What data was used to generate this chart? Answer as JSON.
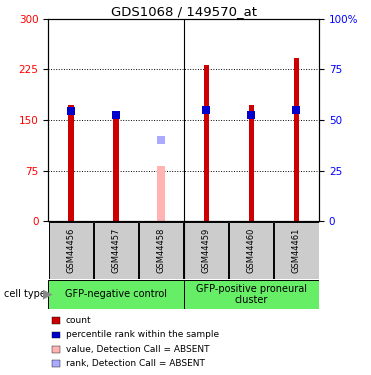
{
  "title": "GDS1068 / 149570_at",
  "samples": [
    "GSM44456",
    "GSM44457",
    "GSM44458",
    "GSM44459",
    "GSM44460",
    "GSM44461"
  ],
  "count_values": [
    172,
    160,
    null,
    232,
    172,
    242
  ],
  "percentile_values": [
    163,
    158,
    null,
    165,
    157,
    165
  ],
  "absent_value": 82,
  "absent_rank": 120,
  "absent_sample_idx": 2,
  "ylim_left": [
    0,
    300
  ],
  "ylim_right": [
    0,
    100
  ],
  "yticks_left": [
    0,
    75,
    150,
    225,
    300
  ],
  "yticks_right": [
    0,
    25,
    50,
    75,
    100
  ],
  "count_color": "#cc0000",
  "percentile_color": "#0000cc",
  "absent_value_color": "#ffb3b3",
  "absent_rank_color": "#aaaaff",
  "group1_label": "GFP-negative control",
  "group2_label": "GFP-positive proneural\ncluster",
  "group_bg_color": "#66ee66",
  "sample_bg_color": "#cccccc",
  "cell_type_label": "cell type",
  "legend_items": [
    {
      "label": "count",
      "color": "#cc0000"
    },
    {
      "label": "percentile rank within the sample",
      "color": "#0000cc"
    },
    {
      "label": "value, Detection Call = ABSENT",
      "color": "#ffb3b3"
    },
    {
      "label": "rank, Detection Call = ABSENT",
      "color": "#aaaaff"
    }
  ],
  "thin_bar_width": 0.12,
  "absent_bar_width": 0.18,
  "marker_size": 6
}
